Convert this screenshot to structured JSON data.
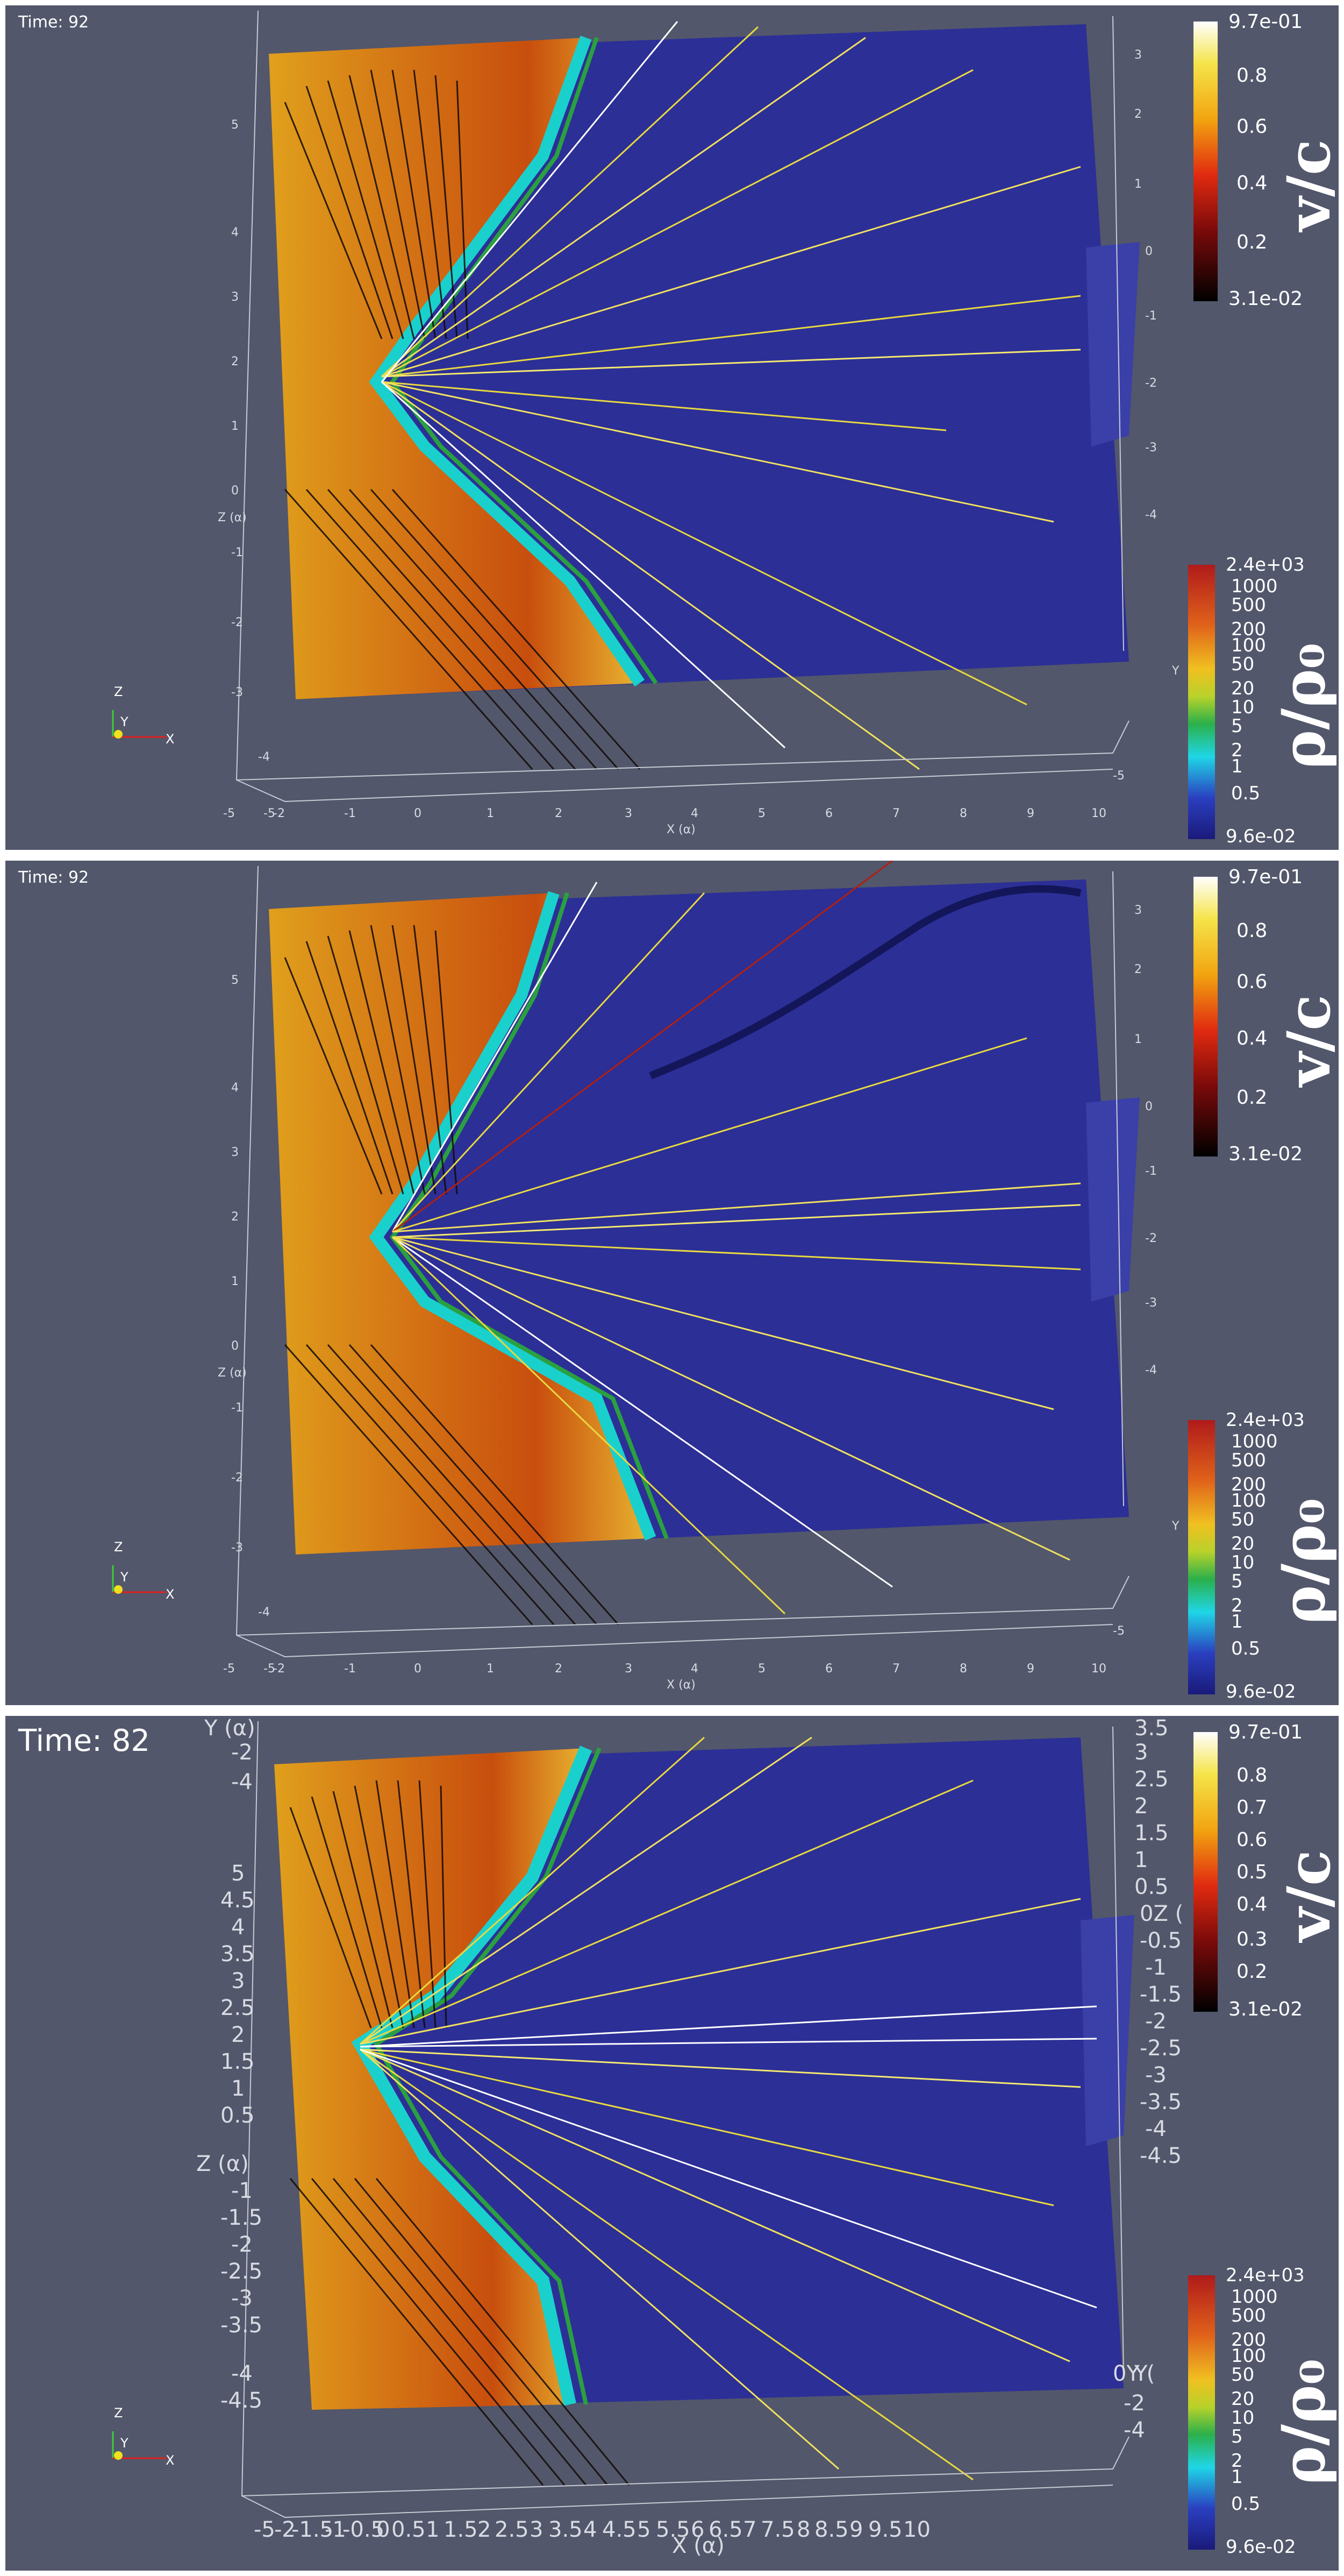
{
  "panels": [
    {
      "time_label": "Time: 92",
      "velocity_colorbar": {
        "title": "v/c",
        "ticks": [
          "9.7e-01",
          "0.8",
          "0.6",
          "0.4",
          "0.2",
          "3.1e-02"
        ]
      },
      "density_colorbar": {
        "title": "ρ/ρ₀",
        "ticks": [
          "2.4e+03",
          "1000",
          "500",
          "200",
          "100",
          "50",
          "20",
          "10",
          "5",
          "2",
          "1",
          "0.5",
          "9.6e-02"
        ]
      },
      "x_axis": {
        "title": "X (α)",
        "ticks": [
          "-5",
          "-2",
          "-1",
          "0",
          "1",
          "2",
          "3",
          "4",
          "5",
          "6",
          "7",
          "8",
          "9",
          "10"
        ]
      },
      "z_axis": {
        "title": "Z (α)",
        "ticks": [
          "-5",
          "5",
          "4",
          "3",
          "2",
          "1",
          "0",
          "-1",
          "-2",
          "-3",
          "-4"
        ]
      },
      "y_axis": {
        "title": "Y",
        "ticks": [
          "3",
          "2",
          "1",
          "0",
          "-1",
          "-2",
          "-3",
          "-4",
          "-5"
        ]
      },
      "orientation_labels": [
        "Z",
        "Y",
        "X"
      ]
    },
    {
      "time_label": "Time: 92",
      "velocity_colorbar": {
        "title": "v/c",
        "ticks": [
          "9.7e-01",
          "0.8",
          "0.6",
          "0.4",
          "0.2",
          "3.1e-02"
        ]
      },
      "density_colorbar": {
        "title": "ρ/ρ₀",
        "ticks": [
          "2.4e+03",
          "1000",
          "500",
          "200",
          "100",
          "50",
          "20",
          "10",
          "5",
          "2",
          "1",
          "0.5",
          "9.6e-02"
        ]
      },
      "x_axis": {
        "title": "X (α)",
        "ticks": [
          "-5",
          "-2",
          "-1",
          "0",
          "1",
          "2",
          "3",
          "4",
          "5",
          "6",
          "7",
          "8",
          "9",
          "10"
        ]
      },
      "z_axis": {
        "title": "Z (α)",
        "ticks": [
          "-5",
          "5",
          "4",
          "3",
          "2",
          "1",
          "0",
          "-1",
          "-2",
          "-3",
          "-4"
        ]
      },
      "y_axis": {
        "title": "Y",
        "ticks": [
          "3",
          "2",
          "1",
          "0",
          "-1",
          "-2",
          "-3",
          "-4",
          "-5"
        ]
      },
      "orientation_labels": [
        "Z",
        "Y",
        "X"
      ]
    },
    {
      "time_label": "Time: 82",
      "velocity_colorbar": {
        "title": "v/c",
        "ticks": [
          "9.7e-01",
          "0.8",
          "0.7",
          "0.6",
          "0.5",
          "0.4",
          "0.3",
          "0.2",
          "3.1e-02"
        ]
      },
      "density_colorbar": {
        "title": "ρ/ρ₀",
        "ticks": [
          "2.4e+03",
          "1000",
          "500",
          "200",
          "100",
          "50",
          "20",
          "10",
          "5",
          "2",
          "1",
          "0.5",
          "9.6e-02"
        ]
      },
      "x_axis": {
        "title": "X (α)",
        "ticks": [
          "-5",
          "-2",
          "-1.5",
          "-1",
          "-0.5",
          "0",
          "0.5",
          "1",
          "1.5",
          "2",
          "2.5",
          "3",
          "3.5",
          "4",
          "4.5",
          "5",
          "5.5",
          "6",
          "6.5",
          "7",
          "7.5",
          "8",
          "8.5",
          "9",
          "9.5",
          "10"
        ]
      },
      "z_axis": {
        "title": "Z (α)",
        "ticks": [
          "Y (α)",
          "-2",
          "-4",
          "5",
          "4.5",
          "4",
          "3.5",
          "3",
          "2.5",
          "2",
          "1.5",
          "1",
          "0.5",
          "-1",
          "-1.5",
          "-2",
          "-2.5",
          "-3",
          "-3.5",
          "-4",
          "-4.5"
        ]
      },
      "y_axis": {
        "title": "Y",
        "ticks": [
          "3.5",
          "3",
          "2.5",
          "2",
          "1.5",
          "1",
          "0.5",
          "0Z (",
          "-0.5",
          "-1",
          "-1.5",
          "-2",
          "-2.5",
          "-3",
          "-3.5",
          "-4",
          "-4.5",
          "0Y (",
          "-2",
          "-4"
        ]
      },
      "orientation_labels": [
        "Z",
        "Y",
        "X"
      ]
    }
  ]
}
